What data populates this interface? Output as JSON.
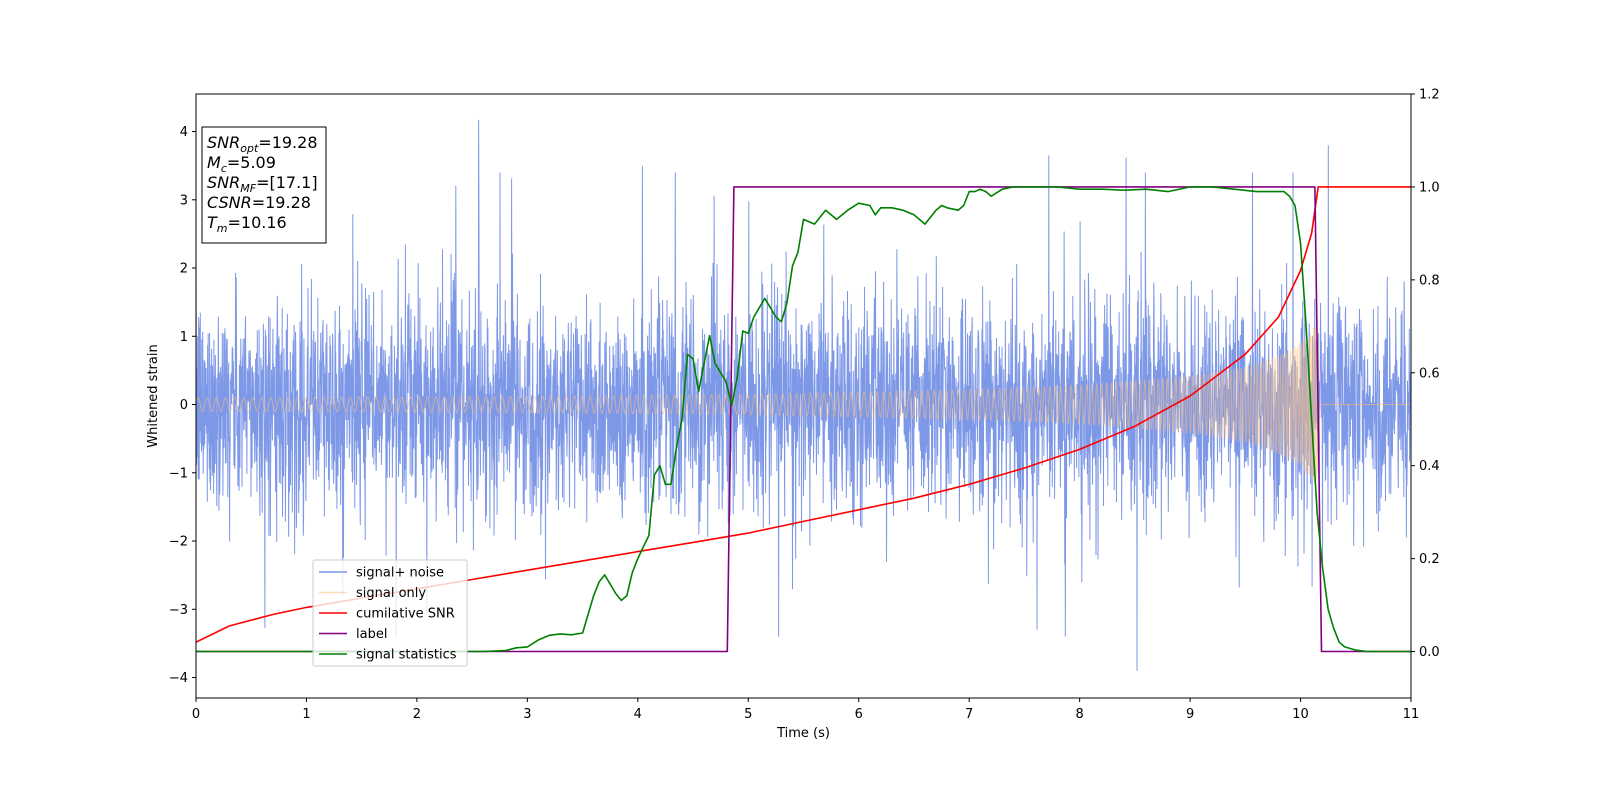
{
  "chart_data": {
    "type": "line",
    "xlabel": "Time (s)",
    "ylabel": "Whitened strain",
    "xlim": [
      0,
      11
    ],
    "ylim_left": [
      -4.3,
      4.55
    ],
    "ylim_right": [
      -0.1,
      1.2
    ],
    "xticks": [
      "0",
      "1",
      "2",
      "3",
      "4",
      "5",
      "6",
      "7",
      "8",
      "9",
      "10",
      "11"
    ],
    "yticks_left": [
      "−4",
      "−3",
      "−2",
      "−1",
      "0",
      "1",
      "2",
      "3",
      "4"
    ],
    "yticks_right": [
      "0.0",
      "0.2",
      "0.4",
      "0.6",
      "0.8",
      "1.0",
      "1.2"
    ],
    "grid": false,
    "legend_position": "lower-left",
    "annotation": [
      {
        "base": "SNR",
        "sub": "opt",
        "rest": "=19.28"
      },
      {
        "base": "M",
        "sub": "c",
        "rest": "=5.09"
      },
      {
        "base": "SNR",
        "sub": "MF",
        "rest": "=[17.1]"
      },
      {
        "base": "CSNR",
        "sub": "",
        "rest": "=19.28"
      },
      {
        "base": "T",
        "sub": "m",
        "rest": "=10.16"
      }
    ],
    "series": [
      {
        "name": "signal+ noise",
        "color": "#7b96e8",
        "axis": "left",
        "kind": "noise",
        "t_end": 11,
        "typical_amplitude": [
          -1.5,
          1.6
        ],
        "extreme_peaks": [
          [
            2.56,
            4.17
          ],
          [
            8.52,
            -3.9
          ],
          [
            10.25,
            3.8
          ],
          [
            7.72,
            3.65
          ],
          [
            8.42,
            3.62
          ],
          [
            4.04,
            3.5
          ]
        ]
      },
      {
        "name": "signal only",
        "color": "#ffbf7a",
        "axis": "left",
        "kind": "chirp",
        "t_start": 0,
        "t_merge": 10.16,
        "amplitude_at_t": [
          [
            0,
            0.1
          ],
          [
            3,
            0.12
          ],
          [
            5,
            0.15
          ],
          [
            7,
            0.22
          ],
          [
            8,
            0.28
          ],
          [
            9,
            0.42
          ],
          [
            9.5,
            0.55
          ],
          [
            9.8,
            0.72
          ],
          [
            10.0,
            0.9
          ],
          [
            10.1,
            1.1
          ],
          [
            10.16,
            1.2
          ]
        ],
        "post_merge_value": 0
      },
      {
        "name": "cumilative SNR",
        "color": "#ff0000",
        "axis": "right",
        "x": [
          0,
          0.3,
          0.7,
          1,
          1.5,
          2,
          2.5,
          3,
          3.5,
          4,
          4.5,
          5,
          5.5,
          6,
          6.5,
          7,
          7.5,
          8,
          8.5,
          9,
          9.5,
          9.8,
          10,
          10.1,
          10.16,
          11
        ],
        "y": [
          0.02,
          0.055,
          0.08,
          0.095,
          0.115,
          0.135,
          0.155,
          0.175,
          0.195,
          0.215,
          0.235,
          0.255,
          0.28,
          0.305,
          0.33,
          0.36,
          0.395,
          0.435,
          0.485,
          0.55,
          0.64,
          0.72,
          0.82,
          0.9,
          1.0,
          1.0
        ]
      },
      {
        "name": "label",
        "color": "#800080",
        "axis": "right",
        "x": [
          0,
          4.81,
          4.87,
          10.13,
          10.19,
          11
        ],
        "y": [
          0,
          0,
          1,
          1,
          0,
          0
        ]
      },
      {
        "name": "signal statistics",
        "color": "#008000",
        "axis": "right",
        "x": [
          0,
          1,
          2,
          2.6,
          2.8,
          2.9,
          3.0,
          3.1,
          3.2,
          3.3,
          3.4,
          3.5,
          3.55,
          3.6,
          3.65,
          3.7,
          3.75,
          3.8,
          3.85,
          3.9,
          3.95,
          4.0,
          4.05,
          4.1,
          4.15,
          4.2,
          4.25,
          4.3,
          4.35,
          4.4,
          4.45,
          4.5,
          4.55,
          4.6,
          4.65,
          4.7,
          4.75,
          4.8,
          4.85,
          4.9,
          4.95,
          5.0,
          5.05,
          5.1,
          5.15,
          5.2,
          5.25,
          5.3,
          5.35,
          5.4,
          5.45,
          5.5,
          5.6,
          5.7,
          5.8,
          5.9,
          6.0,
          6.1,
          6.15,
          6.2,
          6.3,
          6.4,
          6.5,
          6.6,
          6.7,
          6.75,
          6.8,
          6.9,
          6.95,
          7.0,
          7.05,
          7.1,
          7.15,
          7.2,
          7.3,
          7.4,
          7.6,
          7.8,
          8.0,
          8.2,
          8.4,
          8.6,
          8.8,
          9.0,
          9.2,
          9.4,
          9.6,
          9.8,
          9.85,
          9.9,
          9.95,
          10.0,
          10.05,
          10.1,
          10.15,
          10.2,
          10.25,
          10.3,
          10.35,
          10.4,
          10.5,
          10.6,
          10.8,
          11.0
        ],
        "y": [
          0,
          0,
          0,
          0,
          0.002,
          0.008,
          0.01,
          0.025,
          0.035,
          0.038,
          0.036,
          0.04,
          0.08,
          0.12,
          0.15,
          0.165,
          0.145,
          0.125,
          0.11,
          0.12,
          0.17,
          0.2,
          0.225,
          0.25,
          0.38,
          0.4,
          0.36,
          0.36,
          0.44,
          0.5,
          0.64,
          0.63,
          0.56,
          0.62,
          0.68,
          0.62,
          0.6,
          0.58,
          0.53,
          0.59,
          0.69,
          0.685,
          0.72,
          0.74,
          0.76,
          0.74,
          0.72,
          0.71,
          0.75,
          0.83,
          0.86,
          0.93,
          0.92,
          0.95,
          0.93,
          0.95,
          0.965,
          0.96,
          0.94,
          0.955,
          0.955,
          0.95,
          0.94,
          0.92,
          0.95,
          0.96,
          0.955,
          0.95,
          0.96,
          0.99,
          0.99,
          0.995,
          0.99,
          0.98,
          0.995,
          1.0,
          1.0,
          1.0,
          0.995,
          0.995,
          0.993,
          0.995,
          0.99,
          1.0,
          1.0,
          0.995,
          0.99,
          0.99,
          0.99,
          0.98,
          0.96,
          0.88,
          0.7,
          0.5,
          0.3,
          0.18,
          0.09,
          0.05,
          0.02,
          0.01,
          0.003,
          0,
          0,
          0
        ]
      }
    ]
  }
}
